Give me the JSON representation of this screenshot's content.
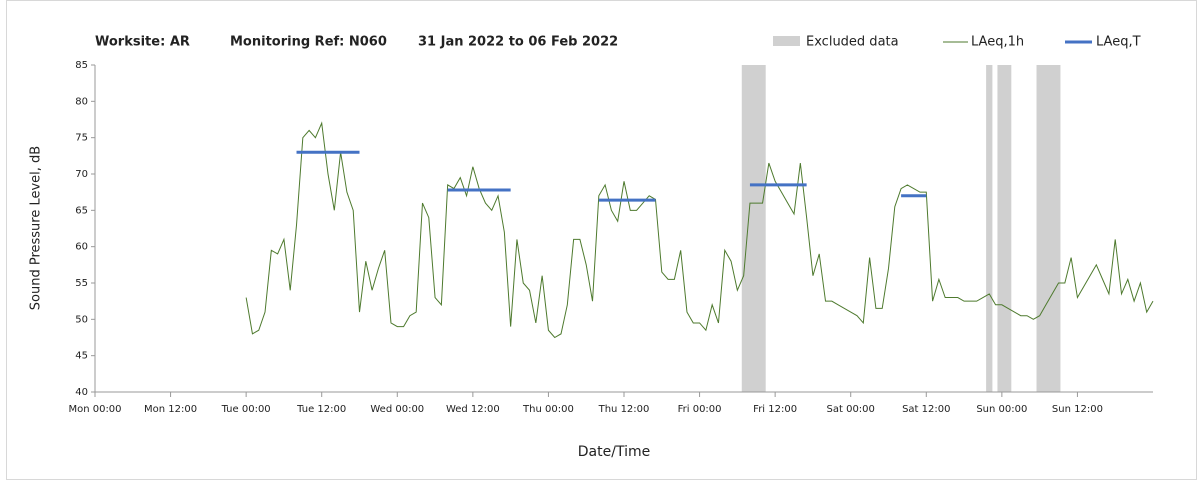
{
  "chart_data": {
    "type": "line",
    "title": [
      "Worksite: AR",
      "Monitoring Ref: N060",
      "31 Jan 2022 to 06 Feb 2022"
    ],
    "xlabel": "Date/Time",
    "ylabel": "Sound Pressure Level, dB",
    "xlim": [
      0,
      168
    ],
    "ylim": [
      40,
      85
    ],
    "xticks": [
      {
        "value": 0,
        "label": "Mon 00:00"
      },
      {
        "value": 12,
        "label": "Mon 12:00"
      },
      {
        "value": 24,
        "label": "Tue 00:00"
      },
      {
        "value": 36,
        "label": "Tue 12:00"
      },
      {
        "value": 48,
        "label": "Wed 00:00"
      },
      {
        "value": 60,
        "label": "Wed 12:00"
      },
      {
        "value": 72,
        "label": "Thu 00:00"
      },
      {
        "value": 84,
        "label": "Thu 12:00"
      },
      {
        "value": 96,
        "label": "Fri 00:00"
      },
      {
        "value": 108,
        "label": "Fri 12:00"
      },
      {
        "value": 120,
        "label": "Sat 00:00"
      },
      {
        "value": 132,
        "label": "Sat 12:00"
      },
      {
        "value": 144,
        "label": "Sun 00:00"
      },
      {
        "value": 156,
        "label": "Sun 12:00"
      }
    ],
    "yticks": [
      40,
      45,
      50,
      55,
      60,
      65,
      70,
      75,
      80,
      85
    ],
    "excluded": {
      "name": "Excluded data",
      "color": "#d0d0d0",
      "spans": [
        [
          102.7,
          106.5
        ],
        [
          141.5,
          142.5
        ],
        [
          143.3,
          145.5
        ],
        [
          149.5,
          153.3
        ]
      ]
    },
    "series": [
      {
        "name": "LAeq,1h",
        "color": "#4e7a2e",
        "x": [
          24,
          25,
          26,
          27,
          28,
          29,
          30,
          31,
          32,
          33,
          34,
          35,
          36,
          37,
          38,
          39,
          40,
          41,
          42,
          43,
          44,
          45,
          46,
          47,
          48,
          49,
          50,
          51,
          52,
          53,
          54,
          55,
          56,
          57,
          58,
          59,
          60,
          61,
          62,
          63,
          64,
          65,
          66,
          67,
          68,
          69,
          70,
          71,
          72,
          73,
          74,
          75,
          76,
          77,
          78,
          79,
          80,
          81,
          82,
          83,
          84,
          85,
          86,
          87,
          88,
          89,
          90,
          91,
          92,
          93,
          94,
          95,
          96,
          97,
          98,
          99,
          100,
          101,
          102,
          103,
          104,
          105,
          106,
          107,
          108,
          109,
          110,
          111,
          112,
          113,
          114,
          115,
          116,
          117,
          118,
          119,
          120,
          121,
          122,
          123,
          124,
          125,
          126,
          127,
          128,
          129,
          130,
          131,
          132,
          133,
          134,
          135,
          136,
          137,
          138,
          139,
          140,
          141,
          142,
          143,
          144,
          145,
          146,
          147,
          148,
          149,
          150,
          151,
          152,
          153,
          154,
          155,
          156,
          157,
          158,
          159,
          160,
          161,
          162,
          163,
          164,
          165,
          166,
          167,
          168
        ],
        "values": [
          53,
          48,
          48.5,
          51,
          59.5,
          59,
          61,
          54,
          63,
          75,
          76,
          75,
          77,
          70,
          65,
          73,
          67.5,
          65,
          51,
          58,
          54,
          57,
          59.5,
          49.5,
          49,
          49,
          50.5,
          51,
          66,
          64,
          53,
          52,
          68.5,
          68,
          69.5,
          67,
          71,
          68,
          66,
          65,
          67,
          62,
          49,
          61,
          55,
          54,
          49.5,
          56,
          48.5,
          47.5,
          48,
          52,
          61,
          61,
          57.5,
          52.5,
          67,
          68.5,
          65,
          63.5,
          69,
          65,
          65,
          66,
          67,
          66.5,
          56.5,
          55.5,
          55.5,
          59.5,
          51,
          49.5,
          49.5,
          48.5,
          52,
          49.5,
          59.5,
          58,
          54,
          56,
          66,
          66,
          66,
          71.5,
          69,
          67.5,
          66,
          64.5,
          71.5,
          64,
          56,
          59,
          52.5,
          52.5,
          52,
          51.5,
          51,
          50.5,
          49.5,
          58.5,
          51.5,
          51.5,
          57,
          65.5,
          68,
          68.5,
          68,
          67.5,
          67.5,
          52.5,
          55.5,
          53,
          53,
          53,
          52.5,
          52.5,
          52.5,
          53,
          53.5,
          52,
          52,
          51.5,
          51,
          50.5,
          50.5,
          50,
          50.5,
          52,
          53.5,
          55,
          55,
          58.5,
          53,
          54.5,
          56,
          57.5,
          55.5,
          53.5,
          61,
          53.5,
          55.5,
          52.5,
          55,
          51,
          52.5
        ]
      },
      {
        "name": "LAeq,T",
        "color": "#4472c4",
        "segments": [
          {
            "x": [
              32,
              42
            ],
            "value": 73
          },
          {
            "x": [
              56,
              66
            ],
            "value": 67.8
          },
          {
            "x": [
              80,
              89
            ],
            "value": 66.4
          },
          {
            "x": [
              104,
              113
            ],
            "value": 68.5
          },
          {
            "x": [
              128,
              132
            ],
            "value": 67
          }
        ]
      }
    ]
  }
}
